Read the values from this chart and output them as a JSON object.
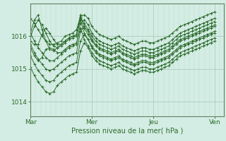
{
  "xlabel": "Pression niveau de la mer( hPa )",
  "bg_color": "#d4ede4",
  "plot_bg_color": "#d4ede4",
  "line_color": "#2d6b2d",
  "xtick_labels": [
    "Mar",
    "Mer",
    "Jeu",
    "Ven"
  ],
  "xtick_positions": [
    0,
    96,
    192,
    288
  ],
  "ytick_labels": [
    "1014",
    "1015",
    "1016"
  ],
  "ytick_positions": [
    1014,
    1015,
    1016
  ],
  "ylim": [
    1013.55,
    1017.0
  ],
  "xlim": [
    0,
    302
  ],
  "num_points": 49,
  "series": [
    [
      1016.55,
      1016.4,
      1016.2,
      1016.0,
      1015.85,
      1015.75,
      1015.75,
      1015.8,
      1015.85,
      1016.0,
      1016.05,
      1016.1,
      1016.2,
      1016.6,
      1016.65,
      1016.55,
      1016.3,
      1016.15,
      1016.05,
      1016.0,
      1015.95,
      1015.9,
      1015.95,
      1016.0,
      1015.9,
      1015.85,
      1015.8,
      1015.75,
      1015.8,
      1015.85,
      1015.85,
      1015.8,
      1015.8,
      1015.85,
      1015.9,
      1015.95,
      1016.0,
      1016.1,
      1016.2,
      1016.3,
      1016.35,
      1016.4,
      1016.45,
      1016.5,
      1016.55,
      1016.6,
      1016.65,
      1016.7,
      1016.75
    ],
    [
      1016.1,
      1015.85,
      1015.65,
      1015.5,
      1015.35,
      1015.25,
      1015.25,
      1015.35,
      1015.45,
      1015.55,
      1015.65,
      1015.7,
      1015.75,
      1016.4,
      1016.5,
      1016.35,
      1016.1,
      1015.95,
      1015.85,
      1015.8,
      1015.75,
      1015.7,
      1015.75,
      1015.8,
      1015.7,
      1015.65,
      1015.6,
      1015.55,
      1015.6,
      1015.65,
      1015.65,
      1015.6,
      1015.6,
      1015.65,
      1015.7,
      1015.75,
      1015.8,
      1015.9,
      1016.0,
      1016.1,
      1016.15,
      1016.2,
      1016.25,
      1016.3,
      1016.35,
      1016.4,
      1016.45,
      1016.5,
      1016.55
    ],
    [
      1015.75,
      1015.5,
      1015.3,
      1015.15,
      1015.0,
      1014.95,
      1015.0,
      1015.1,
      1015.2,
      1015.3,
      1015.4,
      1015.45,
      1015.5,
      1016.15,
      1016.3,
      1016.15,
      1015.9,
      1015.75,
      1015.65,
      1015.6,
      1015.55,
      1015.5,
      1015.55,
      1015.6,
      1015.5,
      1015.45,
      1015.4,
      1015.35,
      1015.4,
      1015.45,
      1015.45,
      1015.4,
      1015.4,
      1015.45,
      1015.5,
      1015.55,
      1015.6,
      1015.7,
      1015.8,
      1015.9,
      1015.95,
      1016.0,
      1016.05,
      1016.1,
      1016.15,
      1016.2,
      1016.25,
      1016.3,
      1016.35
    ],
    [
      1015.4,
      1015.15,
      1014.95,
      1014.8,
      1014.65,
      1014.6,
      1014.65,
      1014.8,
      1014.9,
      1015.0,
      1015.1,
      1015.15,
      1015.2,
      1015.85,
      1016.05,
      1015.9,
      1015.65,
      1015.5,
      1015.4,
      1015.35,
      1015.3,
      1015.25,
      1015.3,
      1015.35,
      1015.25,
      1015.2,
      1015.15,
      1015.1,
      1015.15,
      1015.2,
      1015.2,
      1015.15,
      1015.15,
      1015.2,
      1015.25,
      1015.3,
      1015.35,
      1015.45,
      1015.55,
      1015.65,
      1015.7,
      1015.75,
      1015.8,
      1015.85,
      1015.9,
      1015.95,
      1016.0,
      1016.05,
      1016.1
    ],
    [
      1015.05,
      1014.8,
      1014.6,
      1014.45,
      1014.3,
      1014.25,
      1014.3,
      1014.5,
      1014.6,
      1014.7,
      1014.8,
      1014.85,
      1014.9,
      1015.55,
      1015.8,
      1015.65,
      1015.4,
      1015.25,
      1015.15,
      1015.1,
      1015.05,
      1015.0,
      1015.05,
      1015.1,
      1015.0,
      1014.95,
      1014.9,
      1014.85,
      1014.9,
      1014.95,
      1014.95,
      1014.9,
      1014.9,
      1014.95,
      1015.0,
      1015.05,
      1015.1,
      1015.2,
      1015.3,
      1015.4,
      1015.45,
      1015.5,
      1015.55,
      1015.6,
      1015.65,
      1015.7,
      1015.75,
      1015.8,
      1015.85
    ],
    [
      1016.0,
      1016.3,
      1016.5,
      1016.35,
      1016.1,
      1015.85,
      1015.7,
      1015.65,
      1015.7,
      1015.8,
      1015.9,
      1015.95,
      1016.0,
      1016.55,
      1016.4,
      1016.2,
      1016.0,
      1015.85,
      1015.75,
      1015.7,
      1015.65,
      1015.6,
      1015.65,
      1015.7,
      1015.6,
      1015.55,
      1015.5,
      1015.45,
      1015.5,
      1015.55,
      1015.55,
      1015.5,
      1015.5,
      1015.55,
      1015.6,
      1015.65,
      1015.7,
      1015.8,
      1015.9,
      1016.0,
      1016.05,
      1016.1,
      1016.15,
      1016.2,
      1016.25,
      1016.3,
      1016.35,
      1016.4,
      1016.45
    ],
    [
      1016.1,
      1016.5,
      1016.65,
      1016.2,
      1015.85,
      1015.6,
      1015.55,
      1015.65,
      1015.75,
      1015.85,
      1015.95,
      1016.0,
      1016.05,
      1016.65,
      1016.25,
      1016.05,
      1015.85,
      1015.7,
      1015.6,
      1015.55,
      1015.5,
      1015.45,
      1015.5,
      1015.55,
      1015.45,
      1015.4,
      1015.35,
      1015.3,
      1015.35,
      1015.4,
      1015.4,
      1015.35,
      1015.35,
      1015.4,
      1015.45,
      1015.5,
      1015.55,
      1015.65,
      1015.75,
      1015.85,
      1015.9,
      1015.95,
      1016.0,
      1016.05,
      1016.1,
      1016.15,
      1016.2,
      1016.25,
      1016.3
    ],
    [
      1015.85,
      1015.75,
      1015.75,
      1016.05,
      1016.25,
      1016.1,
      1015.9,
      1015.75,
      1015.75,
      1015.85,
      1015.95,
      1016.0,
      1016.05,
      1016.5,
      1016.1,
      1015.9,
      1015.7,
      1015.55,
      1015.45,
      1015.4,
      1015.35,
      1015.3,
      1015.35,
      1015.4,
      1015.3,
      1015.25,
      1015.2,
      1015.15,
      1015.2,
      1015.25,
      1015.25,
      1015.2,
      1015.2,
      1015.25,
      1015.3,
      1015.35,
      1015.4,
      1015.5,
      1015.6,
      1015.7,
      1015.75,
      1015.8,
      1015.85,
      1015.9,
      1015.95,
      1016.0,
      1016.05,
      1016.1,
      1016.15
    ],
    [
      1015.65,
      1015.4,
      1015.25,
      1015.35,
      1015.6,
      1015.65,
      1015.6,
      1015.5,
      1015.5,
      1015.6,
      1015.7,
      1015.75,
      1015.8,
      1016.25,
      1015.9,
      1015.7,
      1015.5,
      1015.35,
      1015.25,
      1015.2,
      1015.15,
      1015.1,
      1015.15,
      1015.2,
      1015.1,
      1015.05,
      1015.0,
      1014.95,
      1015.0,
      1015.05,
      1015.05,
      1015.0,
      1015.0,
      1015.05,
      1015.1,
      1015.15,
      1015.2,
      1015.3,
      1015.4,
      1015.5,
      1015.55,
      1015.6,
      1015.65,
      1015.7,
      1015.75,
      1015.8,
      1015.85,
      1015.9,
      1015.95
    ]
  ]
}
